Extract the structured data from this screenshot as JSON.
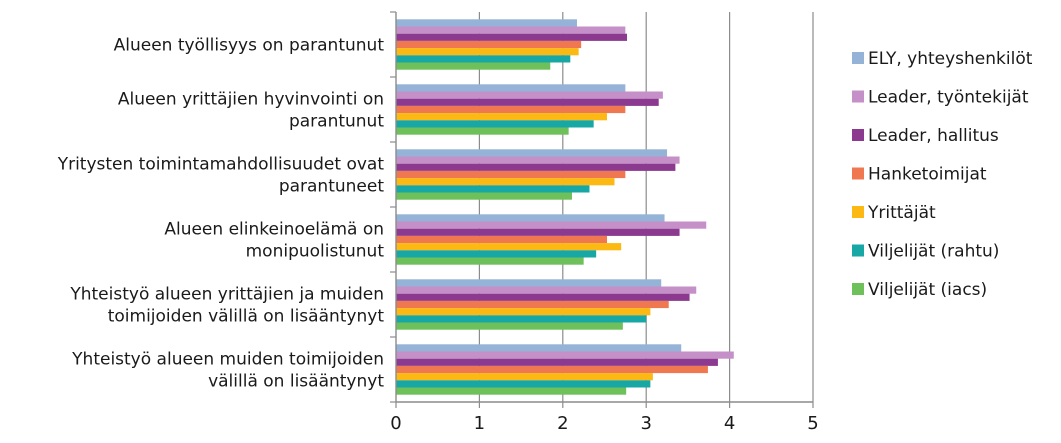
{
  "chart_data": {
    "type": "bar",
    "orientation": "horizontal",
    "title": "",
    "xlabel": "",
    "ylabel": "",
    "xlim": [
      0,
      5
    ],
    "xticks": [
      0,
      1,
      2,
      3,
      4,
      5
    ],
    "grid": "vertical-major",
    "legend_position": "right",
    "categories": [
      [
        "Alueen työllisyys on parantunut"
      ],
      [
        "Alueen yrittäjien hyvinvointi on",
        "parantunut"
      ],
      [
        "Yritysten toimintamahdollisuudet ovat",
        "parantuneet"
      ],
      [
        "Alueen elinkeinoelämä on",
        "monipuolistunut"
      ],
      [
        "Yhteistyö alueen yrittäjien ja muiden",
        "toimijoiden välillä on lisääntynyt"
      ],
      [
        "Yhteistyö alueen muiden toimijoiden",
        "välillä on lisääntynyt"
      ]
    ],
    "series": [
      {
        "name": "ELY, yhteyshenkilöt",
        "color": "#95b3d7",
        "values": [
          2.17,
          2.75,
          3.25,
          3.22,
          3.18,
          3.42
        ]
      },
      {
        "name": "Leader, työntekijät",
        "color": "#c58fc8",
        "values": [
          2.75,
          3.2,
          3.4,
          3.72,
          3.6,
          4.05
        ]
      },
      {
        "name": "Leader, hallitus",
        "color": "#8b3a8f",
        "values": [
          2.77,
          3.15,
          3.35,
          3.4,
          3.52,
          3.86
        ]
      },
      {
        "name": "Hanketoimijat",
        "color": "#f07850",
        "values": [
          2.22,
          2.75,
          2.75,
          2.53,
          3.27,
          3.74
        ]
      },
      {
        "name": "Yrittäjät",
        "color": "#fcb813",
        "values": [
          2.19,
          2.53,
          2.62,
          2.7,
          3.05,
          3.08
        ]
      },
      {
        "name": "Viljelijät (rahtu)",
        "color": "#17a7a5",
        "values": [
          2.09,
          2.37,
          2.32,
          2.4,
          3.0,
          3.05
        ]
      },
      {
        "name": "Viljelijät (iacs)",
        "color": "#6ec05a",
        "values": [
          1.85,
          2.07,
          2.11,
          2.25,
          2.72,
          2.76
        ]
      }
    ]
  }
}
